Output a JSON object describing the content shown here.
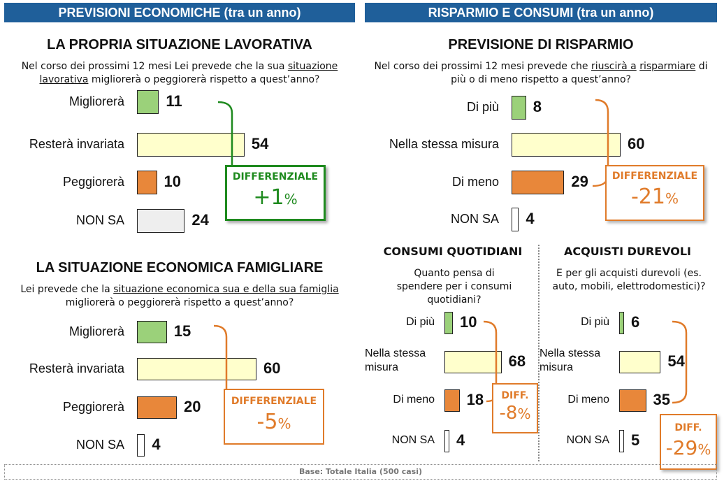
{
  "headers": {
    "left": "PREVISIONI ECONOMICHE (tra un anno)",
    "right": "RISPARMIO E CONSUMI (tra un anno)"
  },
  "footer": "Base: Totale Italia (500 casi)",
  "colors": {
    "header": "#1f5f9a",
    "green": "#9bd17a",
    "cream": "#ffffcc",
    "orange": "#e8873a",
    "grey": "#eeeeee",
    "diff_green": "#1e8a1e",
    "diff_orange": "#e07b2a"
  },
  "panels": {
    "lavoro": {
      "title": "LA PROPRIA SITUAZIONE LAVORATIVA",
      "question": [
        "Nel corso dei prossimi 12 mesi Lei  prevede che la sua ",
        "situazione lavorativa",
        " migliorerà o peggiorerà rispetto a quest’anno?"
      ],
      "diff_label": "DIFFERENZIALE",
      "diff_value": "+1",
      "diff_unit": "%"
    },
    "famiglia": {
      "title": "LA SITUAZIONE ECONOMICA FAMIGLIARE",
      "question": [
        "Lei  prevede che la ",
        "situazione economica sua e della sua famiglia",
        " migliorerà o peggiorerà rispetto a quest’anno?"
      ],
      "diff_label": "DIFFERENZIALE",
      "diff_value": "-5",
      "diff_unit": "%"
    },
    "risparmio": {
      "title": "PREVISIONE DI RISPARMIO",
      "question": [
        "Nel corso dei prossimi 12 mesi prevede che ",
        "riuscirà a",
        " ",
        "risparmiare",
        " di più o di meno rispetto a quest’anno?"
      ],
      "diff_label": "DIFFERENZIALE",
      "diff_value": "-21",
      "diff_unit": "%"
    },
    "consumi": {
      "title": "CONSUMI QUOTIDIANI",
      "question": [
        "Quanto pensa  di spendere per i consumi quotidiani?"
      ],
      "diff_label": "DIFF.",
      "diff_value": "-8",
      "diff_unit": "%"
    },
    "durevoli": {
      "title": "ACQUISTI DUREVOLI",
      "question": [
        "E per gli acquisti durevoli (es. auto, mobili, elettrodomestici)?"
      ],
      "diff_label": "DIFF.",
      "diff_value": "-29",
      "diff_unit": "%"
    }
  },
  "chart_data": [
    {
      "type": "bar",
      "id": "lavoro",
      "categories": [
        "Migliorerà",
        "Resterà invariata",
        "Peggiorerà",
        "NON SA"
      ],
      "values": [
        11,
        54,
        10,
        24
      ],
      "ylim": [
        0,
        100
      ]
    },
    {
      "type": "bar",
      "id": "famiglia",
      "categories": [
        "Migliorerà",
        "Resterà invariata",
        "Peggiorerà",
        "NON SA"
      ],
      "values": [
        15,
        60,
        20,
        4
      ],
      "ylim": [
        0,
        100
      ]
    },
    {
      "type": "bar",
      "id": "risparmio",
      "categories": [
        "Di più",
        "Nella stessa misura",
        "Di meno",
        "NON SA"
      ],
      "values": [
        8,
        60,
        29,
        4
      ],
      "ylim": [
        0,
        100
      ]
    },
    {
      "type": "bar",
      "id": "consumi",
      "categories": [
        "Di più",
        "Nella stessa misura",
        "Di meno",
        "NON SA"
      ],
      "values": [
        10,
        68,
        18,
        4
      ],
      "ylim": [
        0,
        100
      ]
    },
    {
      "type": "bar",
      "id": "durevoli",
      "categories": [
        "Di più",
        "Nella stessa misura",
        "Di meno",
        "NON SA"
      ],
      "values": [
        6,
        54,
        35,
        5
      ],
      "ylim": [
        0,
        100
      ]
    }
  ]
}
